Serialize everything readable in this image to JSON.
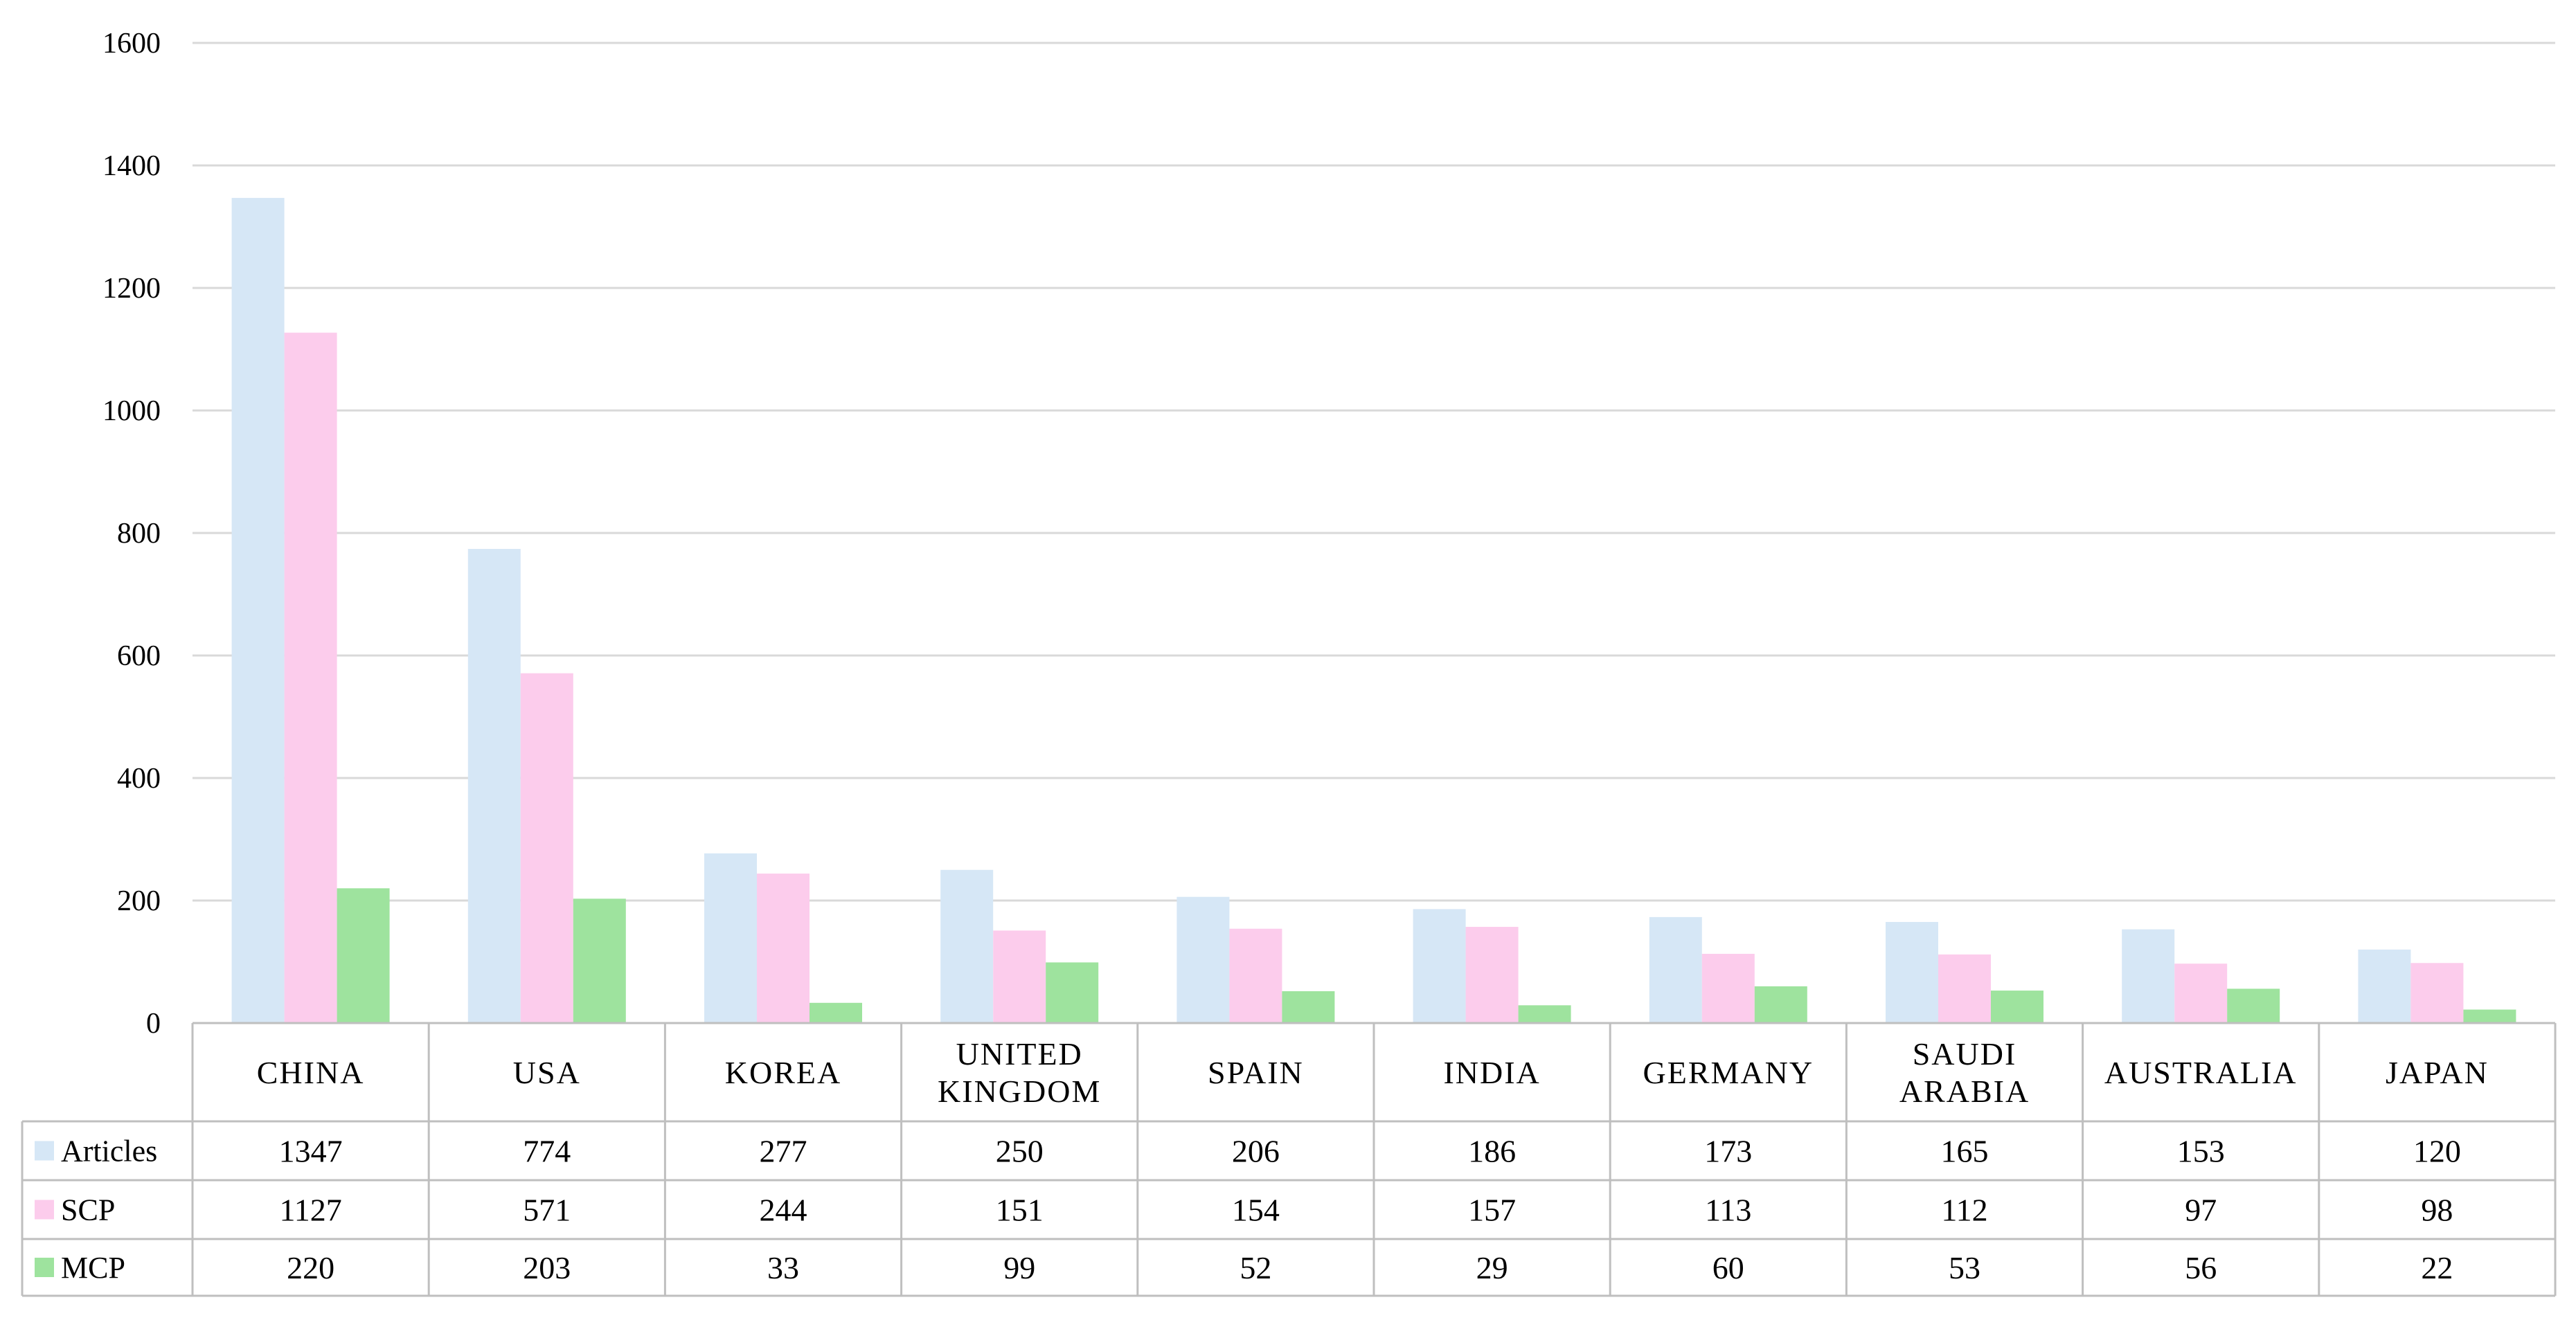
{
  "chart_data": {
    "type": "bar",
    "title": "",
    "xlabel": "",
    "ylabel": "",
    "ylim": [
      0,
      1600
    ],
    "yticks": [
      0,
      200,
      400,
      600,
      800,
      1000,
      1200,
      1400,
      1600
    ],
    "grid": true,
    "legend": "data-table-left",
    "categories": [
      [
        "CHINA"
      ],
      [
        "USA"
      ],
      [
        "KOREA"
      ],
      [
        "UNITED",
        "KINGDOM"
      ],
      [
        "SPAIN"
      ],
      [
        "INDIA"
      ],
      [
        "GERMANY"
      ],
      [
        "SAUDI",
        "ARABIA"
      ],
      [
        "AUSTRALIA"
      ],
      [
        "JAPAN"
      ]
    ],
    "series": [
      {
        "name": "Articles",
        "color": "#d6e7f6",
        "values": [
          1347,
          774,
          277,
          250,
          206,
          186,
          173,
          165,
          153,
          120
        ]
      },
      {
        "name": "SCP",
        "color": "#fcccec",
        "values": [
          1127,
          571,
          244,
          151,
          154,
          157,
          113,
          112,
          97,
          98
        ]
      },
      {
        "name": "MCP",
        "color": "#9ee39e",
        "values": [
          220,
          203,
          33,
          99,
          52,
          29,
          60,
          53,
          56,
          22
        ]
      }
    ]
  },
  "colors": {
    "grid": "#d9d9d9",
    "table_border": "#bfbfbf"
  }
}
